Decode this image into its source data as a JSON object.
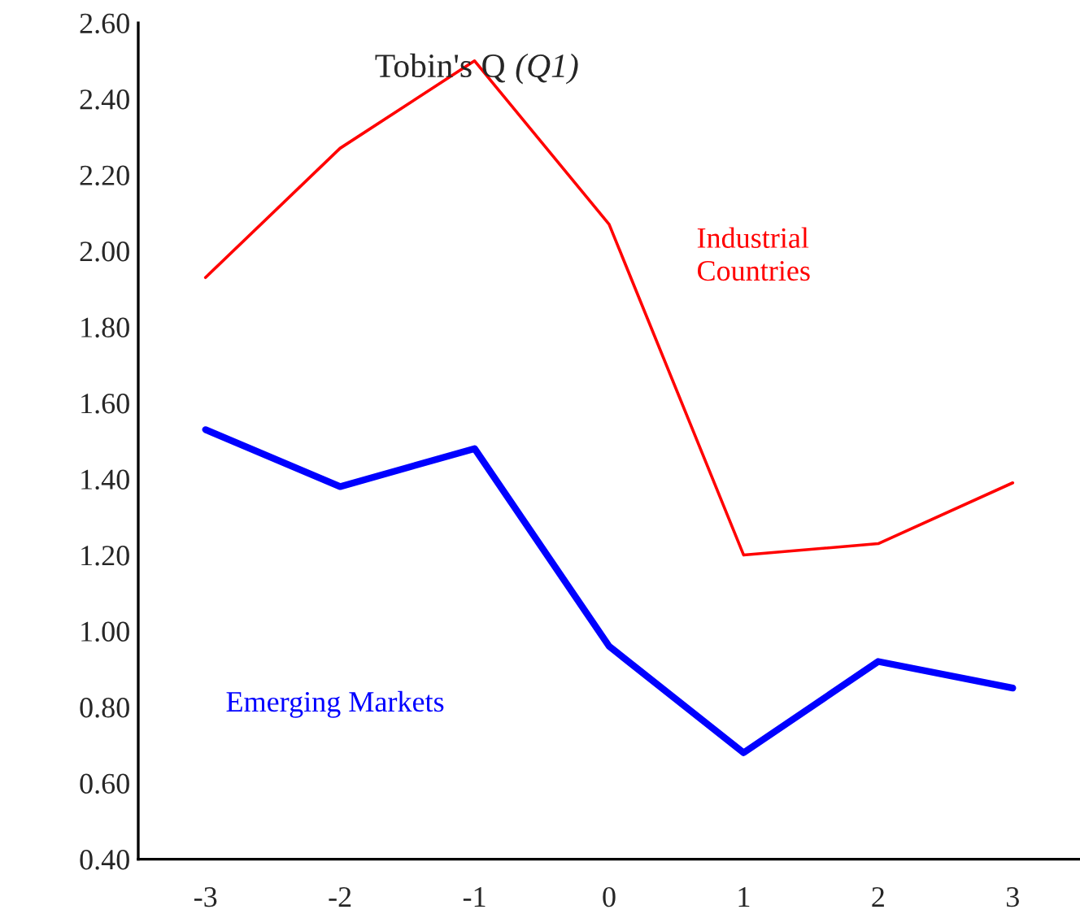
{
  "chart_data": {
    "type": "line",
    "title": "Tobin's Q",
    "subtitle": "(Q1)",
    "categories": [
      "-3",
      "-2",
      "-1",
      "0",
      "1",
      "2",
      "3"
    ],
    "series": [
      {
        "name": "Industrial\nCountries",
        "color": "#ff0000",
        "values": [
          1.93,
          2.27,
          2.5,
          2.07,
          1.2,
          1.23,
          1.39
        ]
      },
      {
        "name": "Emerging Markets",
        "color": "#0000ff",
        "values": [
          1.53,
          1.38,
          1.48,
          0.96,
          0.68,
          0.92,
          0.85
        ]
      }
    ],
    "ylim": [
      0.4,
      2.6
    ],
    "yticks": [
      {
        "value": 0.4,
        "label": "0.40"
      },
      {
        "value": 0.6,
        "label": "0.60"
      },
      {
        "value": 0.8,
        "label": "0.80"
      },
      {
        "value": 1.0,
        "label": "1.00"
      },
      {
        "value": 1.2,
        "label": "1.20"
      },
      {
        "value": 1.4,
        "label": "1.40"
      },
      {
        "value": 1.6,
        "label": "1.60"
      },
      {
        "value": 1.8,
        "label": "1.80"
      },
      {
        "value": 2.0,
        "label": "2.00"
      },
      {
        "value": 2.2,
        "label": "2.20"
      },
      {
        "value": 2.4,
        "label": "2.40"
      },
      {
        "value": 2.6,
        "label": "2.60"
      }
    ],
    "grid": false,
    "legend": false,
    "marker": "none",
    "line_style": "solid"
  }
}
